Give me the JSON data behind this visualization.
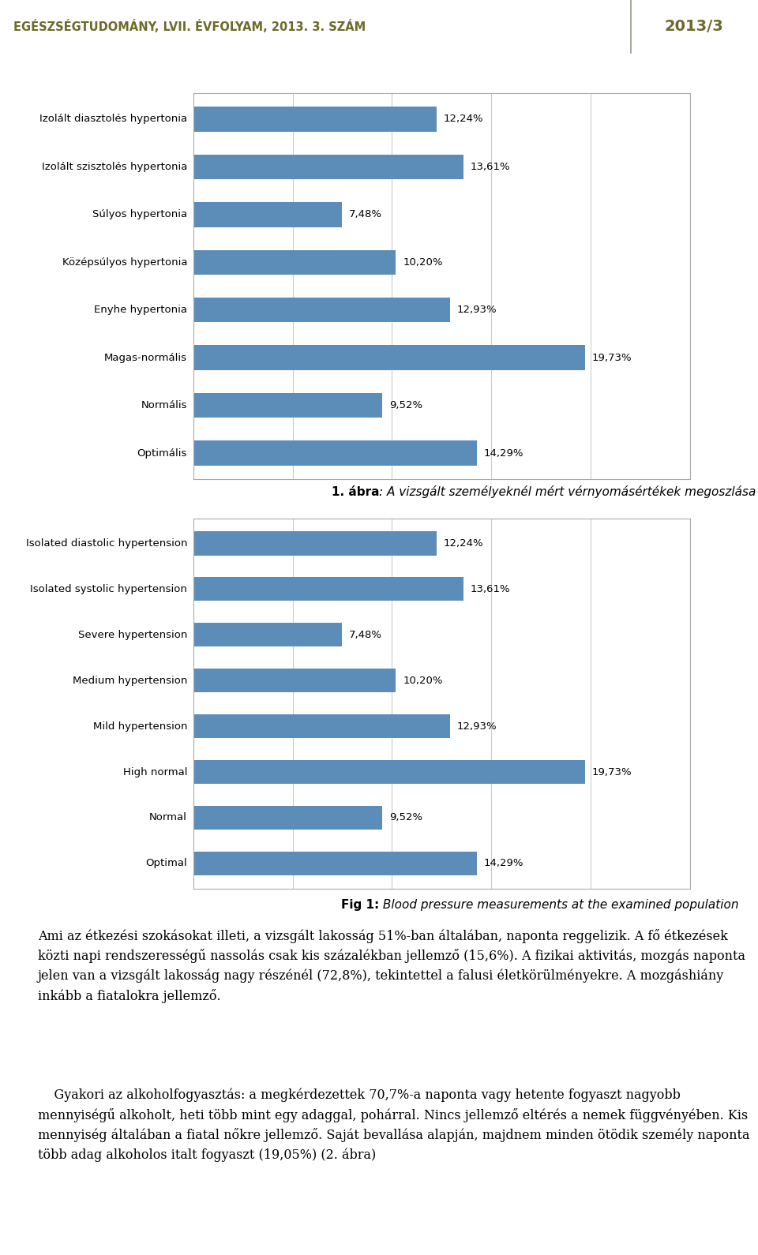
{
  "header_text": "EGÉSZSÉGTUDOMÁNY, LVII. ÉVFOLYAM, 2013. 3. SZÁM",
  "header_right": "2013/3",
  "header_bg": "#e6e6dc",
  "header_text_color": "#6b6b2a",
  "chart1_categories": [
    "Izolált diasztolés hypertonia",
    "Izolált szisztolés hypertonia",
    "Súlyos hypertonia",
    "Középsúlyos hypertonia",
    "Enyhe hypertonia",
    "Magas-normális",
    "Normális",
    "Optimális"
  ],
  "chart1_values": [
    12.24,
    13.61,
    7.48,
    10.2,
    12.93,
    19.73,
    9.52,
    14.29
  ],
  "chart1_labels": [
    "12,24%",
    "13,61%",
    "7,48%",
    "10,20%",
    "12,93%",
    "19,73%",
    "9,52%",
    "14,29%"
  ],
  "caption1_bold": "1. ábra",
  "caption1_rest": ": A vizsgált személyeknél mért vérnyomásértékek megoszlása",
  "chart2_categories": [
    "Isolated diastolic hypertension",
    "Isolated systolic hypertension",
    "Severe hypertension",
    "Medium hypertension",
    "Mild hypertension",
    "High normal",
    "Normal",
    "Optimal"
  ],
  "chart2_values": [
    12.24,
    13.61,
    7.48,
    10.2,
    12.93,
    19.73,
    9.52,
    14.29
  ],
  "chart2_labels": [
    "12,24%",
    "13,61%",
    "7,48%",
    "10,20%",
    "12,93%",
    "19,73%",
    "9,52%",
    "14,29%"
  ],
  "caption2_bold": "Fig 1:",
  "caption2_rest": " Blood pressure measurements at the examined population",
  "bar_color": "#5b8db8",
  "body_text1_parts": [
    {
      "text": "Ami az étkezési szokásokat illeti, a vizsgált lakosság 51%-ban általában, naponta reggelizik. A fő étkezések közti napi rendszerességű nassolás csak kis százalékban jellemző (15,6%). A fizikai aktivitás, mozgás naponta jelen van a vizsgált lakosság nagy részénél (72,8%), tekintettel a falusi életkörülményekre. A mozgáshiány inkább a fiatalokra jellemző.",
      "indent": false
    }
  ],
  "body_text2_parts": [
    {
      "text": "    Gyakori az alkoholfogyasztás: a megkérdezettek 70,7%-a naponta vagy hetente fogyaszt nagyobb mennyiségű alkoholt, heti több mint egy adaggal, pohárral. Nincs jellemző eltérés a nemek függvényében. Kis mennyiség általában a fiatal nőkre jellemző. Saját bevallása alapján, majdnem minden ötödik személy naponta több adag alkoholos italt fogyaszt (19,05%) (2. ábra)",
      "indent": true
    }
  ],
  "box_border_color": "#aaaaaa",
  "grid_color": "#cccccc",
  "text_color": "#000000",
  "label_fontsize": 9.5,
  "tick_fontsize": 9.5,
  "caption_fontsize": 11,
  "body_fontsize": 11.5
}
